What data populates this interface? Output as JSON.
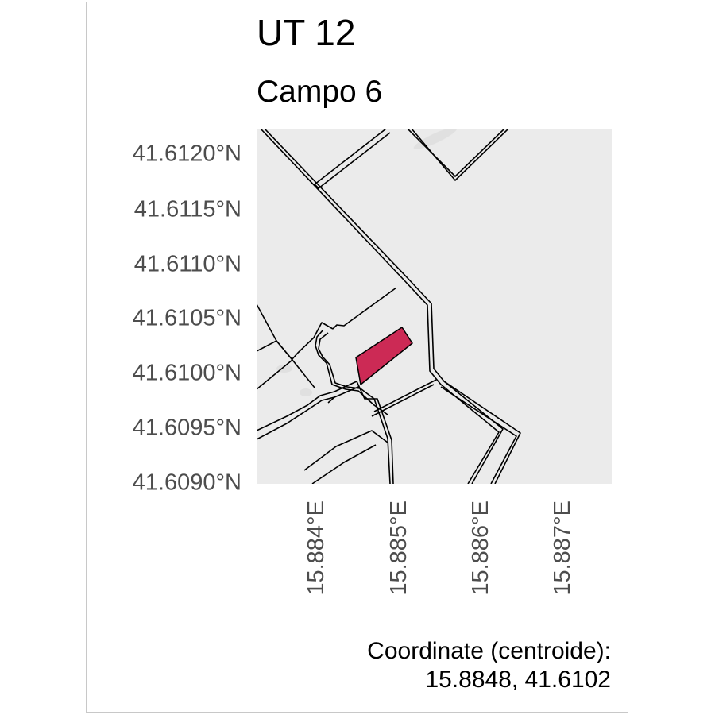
{
  "map": {
    "title": "UT 12",
    "subtitle": "Campo 6",
    "y_axis": {
      "ticks": [
        "41.6120°N",
        "41.6115°N",
        "41.6110°N",
        "41.6105°N",
        "41.6100°N",
        "41.6095°N",
        "41.6090°N"
      ]
    },
    "x_axis": {
      "ticks": [
        "15.884°E",
        "15.885°E",
        "15.886°E",
        "15.887°E"
      ]
    },
    "caption": {
      "line1": "Coordinate (centroide):",
      "line2": "15.8848, 41.6102"
    },
    "colors": {
      "background": "#ebebeb",
      "boundary": "#000000",
      "highlight": "#cc2a55"
    }
  }
}
